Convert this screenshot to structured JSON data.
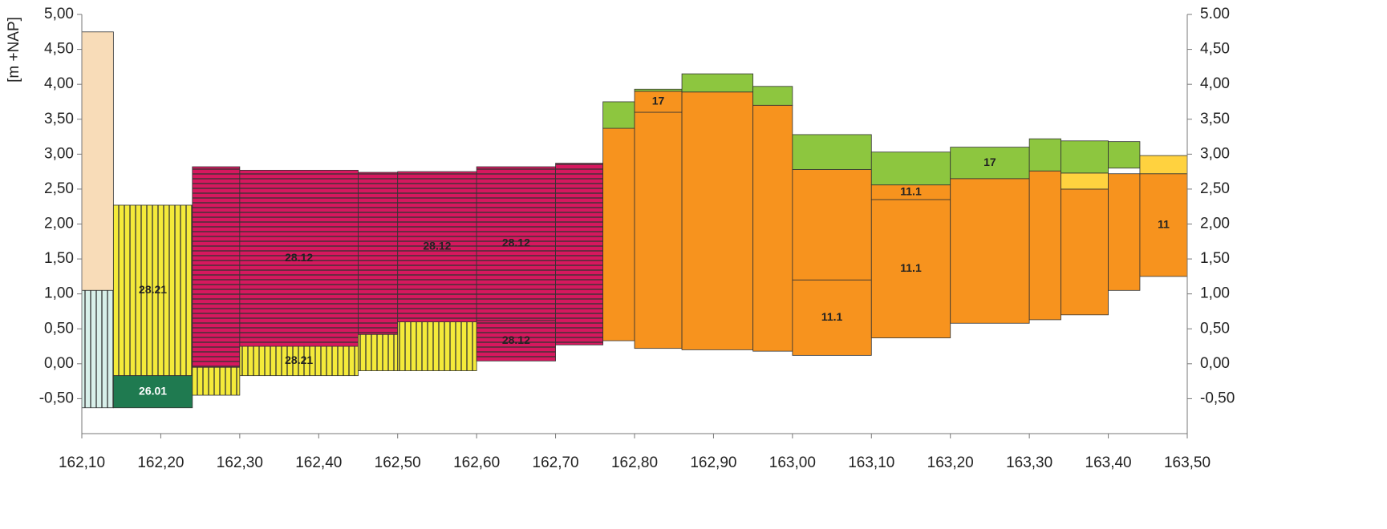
{
  "chart_data": {
    "type": "block",
    "y_label": "[m +NAP]",
    "xlim": [
      162.1,
      163.5
    ],
    "ylim": [
      -1,
      5
    ],
    "xticks": [
      {
        "value": 162.1,
        "label": "162,10"
      },
      {
        "value": 162.2,
        "label": "162,20"
      },
      {
        "value": 162.3,
        "label": "162,30"
      },
      {
        "value": 162.4,
        "label": "162,40"
      },
      {
        "value": 162.5,
        "label": "162,50"
      },
      {
        "value": 162.6,
        "label": "162,60"
      },
      {
        "value": 162.7,
        "label": "162,70"
      },
      {
        "value": 162.8,
        "label": "162,80"
      },
      {
        "value": 162.9,
        "label": "162,90"
      },
      {
        "value": 163.0,
        "label": "163,00"
      },
      {
        "value": 163.1,
        "label": "163,10"
      },
      {
        "value": 163.2,
        "label": "163,20"
      },
      {
        "value": 163.3,
        "label": "163,30"
      },
      {
        "value": 163.4,
        "label": "163,40"
      },
      {
        "value": 163.5,
        "label": "163,50"
      }
    ],
    "yticks": [
      {
        "value": 5,
        "label": "5,00"
      },
      {
        "value": 4.5,
        "label": "4,50"
      },
      {
        "value": 4,
        "label": "4,00"
      },
      {
        "value": 3.5,
        "label": "3,50"
      },
      {
        "value": 3,
        "label": "3,00"
      },
      {
        "value": 2.5,
        "label": "2,50"
      },
      {
        "value": 2,
        "label": "2,00"
      },
      {
        "value": 1.5,
        "label": "1,50"
      },
      {
        "value": 1,
        "label": "1,00"
      },
      {
        "value": 0.5,
        "label": "0,50"
      },
      {
        "value": 0,
        "label": "0,00"
      },
      {
        "value": -0.5,
        "label": "-0,50"
      }
    ],
    "y2lim": [
      -1,
      5
    ],
    "y2ticks": [
      {
        "value": 5,
        "label": "5.00"
      },
      {
        "value": 4.5,
        "label": "4,50"
      },
      {
        "value": 4,
        "label": "4,00"
      },
      {
        "value": 3.5,
        "label": "3,50"
      },
      {
        "value": 3,
        "label": "3,00"
      },
      {
        "value": 2.5,
        "label": "2,50"
      },
      {
        "value": 2,
        "label": "2,00"
      },
      {
        "value": 1.5,
        "label": "1,50"
      },
      {
        "value": 1,
        "label": "1,00"
      },
      {
        "value": 0.5,
        "label": "0,50"
      },
      {
        "value": 0,
        "label": "0,00"
      },
      {
        "value": -0.5,
        "label": "-0,50"
      }
    ],
    "blocks": [
      {
        "x": [
          162.1,
          162.14
        ],
        "y": [
          1.05,
          4.75
        ],
        "color": "#f8dcb8"
      },
      {
        "x": [
          162.1,
          162.14
        ],
        "y": [
          -0.63,
          1.05
        ],
        "color": "#d8f0ea",
        "hatch": "vertical"
      },
      {
        "x": [
          162.14,
          162.24
        ],
        "y": [
          -0.17,
          2.27
        ],
        "color": "#f4ea3a",
        "hatch": "vertical",
        "label": "28.21"
      },
      {
        "x": [
          162.14,
          162.24
        ],
        "y": [
          -0.63,
          -0.17
        ],
        "color": "#1f7a50",
        "label": "26.01"
      },
      {
        "x": [
          162.24,
          162.3
        ],
        "y": [
          -0.45,
          -0.05
        ],
        "color": "#f4ea3a",
        "hatch": "vertical"
      },
      {
        "x": [
          162.24,
          162.3
        ],
        "y": [
          -0.05,
          2.82
        ],
        "color": "#d6185e",
        "hatch": "horizontal"
      },
      {
        "x": [
          162.3,
          162.45
        ],
        "y": [
          -0.17,
          0.25
        ],
        "color": "#f4ea3a",
        "hatch": "vertical",
        "label": "28.21"
      },
      {
        "x": [
          162.3,
          162.45
        ],
        "y": [
          0.25,
          2.77
        ],
        "color": "#d6185e",
        "hatch": "horizontal",
        "label": "28.12"
      },
      {
        "x": [
          162.45,
          162.5
        ],
        "y": [
          -0.1,
          0.42
        ],
        "color": "#f4ea3a",
        "hatch": "vertical"
      },
      {
        "x": [
          162.45,
          162.5
        ],
        "y": [
          0.42,
          2.74
        ],
        "color": "#d6185e",
        "hatch": "horizontal"
      },
      {
        "x": [
          162.5,
          162.6
        ],
        "y": [
          -0.1,
          0.6
        ],
        "color": "#f4ea3a",
        "hatch": "vertical"
      },
      {
        "x": [
          162.5,
          162.6
        ],
        "y": [
          0.6,
          2.75
        ],
        "color": "#d6185e",
        "hatch": "horizontal",
        "label": "28.12"
      },
      {
        "x": [
          162.6,
          162.7
        ],
        "y": [
          0.04,
          0.62
        ],
        "color": "#d6185e",
        "hatch": "horizontal",
        "label": "28.12"
      },
      {
        "x": [
          162.6,
          162.7
        ],
        "y": [
          0.62,
          2.82
        ],
        "color": "#d6185e",
        "hatch": "horizontal",
        "label": "28.12"
      },
      {
        "x": [
          162.7,
          162.76
        ],
        "y": [
          0.27,
          2.87
        ],
        "color": "#d6185e",
        "hatch": "horizontal"
      },
      {
        "x": [
          162.76,
          162.8
        ],
        "y": [
          0.33,
          3.37
        ],
        "color": "#f7931e"
      },
      {
        "x": [
          162.76,
          162.8
        ],
        "y": [
          3.37,
          3.75
        ],
        "color": "#8dc63f"
      },
      {
        "x": [
          162.8,
          162.86
        ],
        "y": [
          0.22,
          3.6
        ],
        "color": "#f7931e"
      },
      {
        "x": [
          162.8,
          162.86
        ],
        "y": [
          3.6,
          3.9
        ],
        "color": "#f7931e",
        "label": "17"
      },
      {
        "x": [
          162.8,
          162.86
        ],
        "y": [
          3.9,
          3.93
        ],
        "color": "#8dc63f"
      },
      {
        "x": [
          162.86,
          162.95
        ],
        "y": [
          0.2,
          3.89
        ],
        "color": "#f7931e"
      },
      {
        "x": [
          162.86,
          162.95
        ],
        "y": [
          3.89,
          4.15
        ],
        "color": "#8dc63f"
      },
      {
        "x": [
          162.95,
          163.0
        ],
        "y": [
          0.18,
          3.7
        ],
        "color": "#f7931e"
      },
      {
        "x": [
          162.95,
          163.0
        ],
        "y": [
          3.7,
          3.97
        ],
        "color": "#8dc63f"
      },
      {
        "x": [
          163.0,
          163.1
        ],
        "y": [
          0.12,
          1.2
        ],
        "color": "#f7931e",
        "label": "11.1"
      },
      {
        "x": [
          163.0,
          163.1
        ],
        "y": [
          1.2,
          2.78
        ],
        "color": "#f7931e"
      },
      {
        "x": [
          163.0,
          163.1
        ],
        "y": [
          2.78,
          3.28
        ],
        "color": "#8dc63f"
      },
      {
        "x": [
          163.1,
          163.2
        ],
        "y": [
          0.37,
          2.35
        ],
        "color": "#f7931e",
        "label": "11.1"
      },
      {
        "x": [
          163.1,
          163.2
        ],
        "y": [
          2.35,
          2.56
        ],
        "color": "#f7931e",
        "label": "11.1"
      },
      {
        "x": [
          163.1,
          163.2
        ],
        "y": [
          2.56,
          3.03
        ],
        "color": "#8dc63f"
      },
      {
        "x": [
          163.2,
          163.3
        ],
        "y": [
          0.58,
          2.65
        ],
        "color": "#f7931e"
      },
      {
        "x": [
          163.2,
          163.3
        ],
        "y": [
          2.65,
          3.1
        ],
        "color": "#8dc63f",
        "label": "17"
      },
      {
        "x": [
          163.3,
          163.34
        ],
        "y": [
          0.63,
          2.76
        ],
        "color": "#f7931e"
      },
      {
        "x": [
          163.3,
          163.34
        ],
        "y": [
          2.76,
          3.22
        ],
        "color": "#8dc63f"
      },
      {
        "x": [
          163.34,
          163.4
        ],
        "y": [
          0.7,
          2.5
        ],
        "color": "#f7931e"
      },
      {
        "x": [
          163.34,
          163.4
        ],
        "y": [
          2.5,
          2.73
        ],
        "color": "#ffd23f"
      },
      {
        "x": [
          163.34,
          163.4
        ],
        "y": [
          2.73,
          3.19
        ],
        "color": "#8dc63f"
      },
      {
        "x": [
          163.4,
          163.44
        ],
        "y": [
          1.05,
          2.72
        ],
        "color": "#f7931e"
      },
      {
        "x": [
          163.4,
          163.44
        ],
        "y": [
          2.8,
          3.18
        ],
        "color": "#8dc63f"
      },
      {
        "x": [
          163.44,
          163.5
        ],
        "y": [
          1.25,
          2.72
        ],
        "color": "#f7931e",
        "label": "11"
      },
      {
        "x": [
          163.44,
          163.5
        ],
        "y": [
          2.72,
          2.98
        ],
        "color": "#ffd23f"
      }
    ]
  }
}
